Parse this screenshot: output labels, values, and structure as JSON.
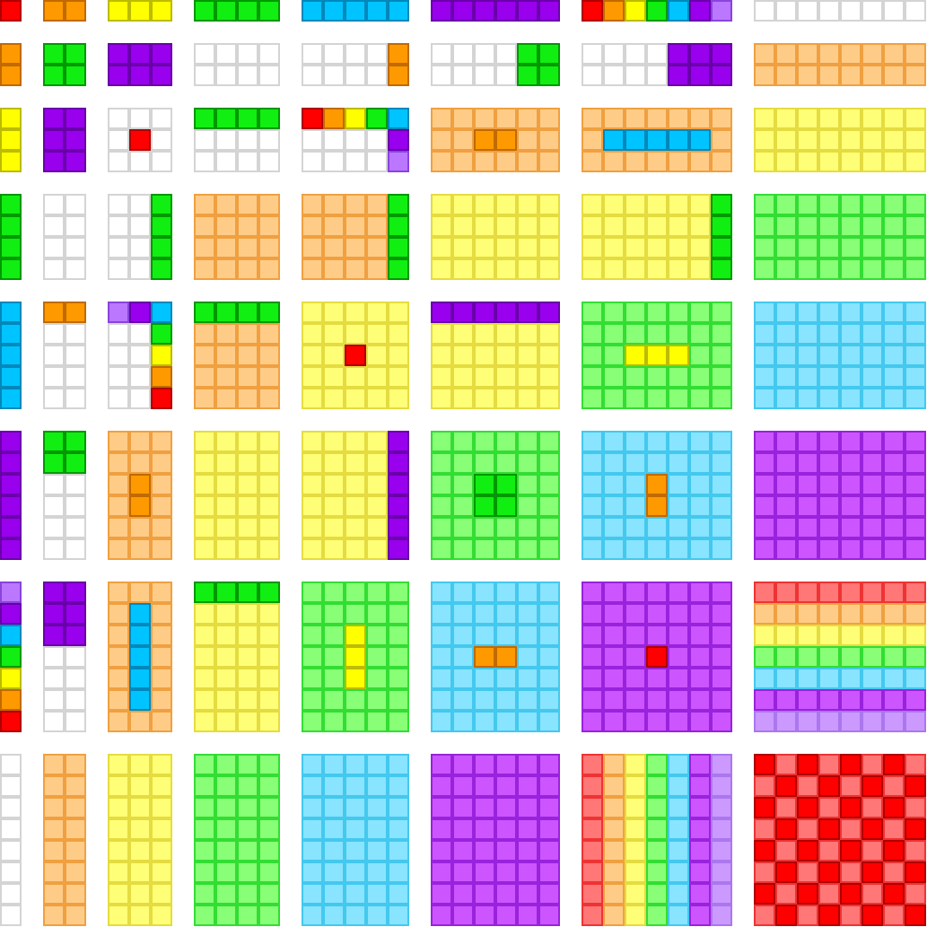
{
  "palette": {
    "W": [
      "#ffffff",
      "#d4d4d4"
    ],
    "R": [
      "#ff0000",
      "#b00000"
    ],
    "O": [
      "#ff9900",
      "#c06a00"
    ],
    "Y": [
      "#ffff00",
      "#bcbc00"
    ],
    "G": [
      "#11ee11",
      "#009900"
    ],
    "B": [
      "#00c4ff",
      "#0088bb"
    ],
    "P": [
      "#9900ee",
      "#6a00aa"
    ],
    "L": [
      "#bb77ff",
      "#8844dd"
    ],
    "r": [
      "#ff7777",
      "#ee3333"
    ],
    "o": [
      "#ffcc88",
      "#f0a040"
    ],
    "y": [
      "#ffff77",
      "#e4dc40"
    ],
    "g": [
      "#88ff77",
      "#33dd33"
    ],
    "b": [
      "#88e4ff",
      "#44c8ee"
    ],
    "p": [
      "#cc55ff",
      "#9922dd"
    ],
    "l": [
      "#cc99ff",
      "#aa77ee"
    ]
  },
  "blocks": [
    [
      {
        "bg": "R"
      },
      {
        "bg": "O"
      },
      {
        "bg": "Y"
      },
      {
        "bg": "G"
      },
      {
        "bg": "B"
      },
      {
        "bg": "P"
      },
      {
        "bg": "W",
        "marks": [
          [
            0,
            0,
            1,
            1,
            "R"
          ],
          [
            0,
            1,
            1,
            1,
            "O"
          ],
          [
            0,
            2,
            1,
            1,
            "Y"
          ],
          [
            0,
            3,
            1,
            1,
            "G"
          ],
          [
            0,
            4,
            1,
            1,
            "B"
          ],
          [
            0,
            5,
            1,
            1,
            "P"
          ],
          [
            0,
            6,
            1,
            1,
            "L"
          ]
        ]
      },
      {
        "bg": "W"
      }
    ],
    [
      {
        "bg": "O"
      },
      {
        "bg": "G"
      },
      {
        "bg": "P"
      },
      {
        "bg": "W"
      },
      {
        "bg": "W",
        "marks": [
          [
            0,
            4,
            2,
            1,
            "O"
          ]
        ]
      },
      {
        "bg": "W",
        "marks": [
          [
            0,
            4,
            2,
            2,
            "G"
          ]
        ]
      },
      {
        "bg": "W",
        "marks": [
          [
            0,
            4,
            2,
            3,
            "P"
          ]
        ]
      },
      {
        "bg": "o"
      }
    ],
    [
      {
        "bg": "Y"
      },
      {
        "bg": "P"
      },
      {
        "bg": "W",
        "marks": [
          [
            1,
            1,
            1,
            1,
            "R"
          ]
        ]
      },
      {
        "bg": "W",
        "marks": [
          [
            0,
            0,
            1,
            4,
            "G"
          ]
        ]
      },
      {
        "bg": "W",
        "marks": [
          [
            0,
            0,
            1,
            1,
            "R"
          ],
          [
            0,
            1,
            1,
            1,
            "O"
          ],
          [
            0,
            2,
            1,
            1,
            "Y"
          ],
          [
            0,
            3,
            1,
            1,
            "G"
          ],
          [
            0,
            4,
            1,
            1,
            "B"
          ],
          [
            1,
            4,
            1,
            1,
            "P"
          ],
          [
            2,
            4,
            1,
            1,
            "L"
          ]
        ]
      },
      {
        "bg": "o",
        "marks": [
          [
            1,
            2,
            1,
            2,
            "O"
          ]
        ]
      },
      {
        "bg": "o",
        "marks": [
          [
            1,
            1,
            1,
            5,
            "B"
          ]
        ]
      },
      {
        "bg": "y"
      }
    ],
    [
      {
        "bg": "G"
      },
      {
        "bg": "W"
      },
      {
        "bg": "W",
        "marks": [
          [
            0,
            2,
            4,
            1,
            "G"
          ]
        ]
      },
      {
        "bg": "o"
      },
      {
        "bg": "o",
        "marks": [
          [
            0,
            4,
            4,
            1,
            "G"
          ]
        ]
      },
      {
        "bg": "y"
      },
      {
        "bg": "y",
        "marks": [
          [
            0,
            6,
            4,
            1,
            "G"
          ]
        ]
      },
      {
        "bg": "g"
      }
    ],
    [
      {
        "bg": "B"
      },
      {
        "bg": "W",
        "marks": [
          [
            0,
            0,
            1,
            2,
            "O"
          ]
        ]
      },
      {
        "bg": "W",
        "marks": [
          [
            0,
            0,
            1,
            1,
            "L"
          ],
          [
            0,
            1,
            1,
            1,
            "P"
          ],
          [
            0,
            2,
            1,
            1,
            "B"
          ],
          [
            1,
            2,
            1,
            1,
            "G"
          ],
          [
            2,
            2,
            1,
            1,
            "Y"
          ],
          [
            3,
            2,
            1,
            1,
            "O"
          ],
          [
            4,
            2,
            1,
            1,
            "R"
          ]
        ]
      },
      {
        "bg": "o",
        "marks": [
          [
            0,
            0,
            1,
            4,
            "G"
          ]
        ]
      },
      {
        "bg": "y",
        "marks": [
          [
            2,
            2,
            1,
            1,
            "R"
          ]
        ]
      },
      {
        "bg": "y",
        "marks": [
          [
            0,
            0,
            1,
            6,
            "P"
          ]
        ]
      },
      {
        "bg": "g",
        "marks": [
          [
            2,
            2,
            1,
            3,
            "Y"
          ]
        ]
      },
      {
        "bg": "b"
      }
    ],
    [
      {
        "bg": "P"
      },
      {
        "bg": "W",
        "marks": [
          [
            0,
            0,
            2,
            2,
            "G"
          ]
        ]
      },
      {
        "bg": "o",
        "marks": [
          [
            2,
            1,
            2,
            1,
            "O"
          ]
        ]
      },
      {
        "bg": "y"
      },
      {
        "bg": "y",
        "marks": [
          [
            0,
            4,
            6,
            1,
            "P"
          ]
        ]
      },
      {
        "bg": "g",
        "marks": [
          [
            2,
            2,
            2,
            2,
            "G"
          ]
        ]
      },
      {
        "bg": "b",
        "marks": [
          [
            2,
            3,
            2,
            1,
            "O"
          ]
        ]
      },
      {
        "bg": "p"
      }
    ],
    [
      {
        "bg": "W",
        "marks": [
          [
            0,
            0,
            1,
            1,
            "L"
          ],
          [
            1,
            0,
            1,
            1,
            "P"
          ],
          [
            2,
            0,
            1,
            1,
            "B"
          ],
          [
            3,
            0,
            1,
            1,
            "G"
          ],
          [
            4,
            0,
            1,
            1,
            "Y"
          ],
          [
            5,
            0,
            1,
            1,
            "O"
          ],
          [
            6,
            0,
            1,
            1,
            "R"
          ]
        ]
      },
      {
        "bg": "W",
        "marks": [
          [
            0,
            0,
            3,
            2,
            "P"
          ]
        ]
      },
      {
        "bg": "o",
        "marks": [
          [
            1,
            1,
            5,
            1,
            "B"
          ]
        ]
      },
      {
        "bg": "y",
        "marks": [
          [
            0,
            0,
            1,
            4,
            "G"
          ]
        ]
      },
      {
        "bg": "g",
        "marks": [
          [
            2,
            2,
            3,
            1,
            "Y"
          ]
        ]
      },
      {
        "bg": "b",
        "marks": [
          [
            3,
            2,
            1,
            2,
            "O"
          ]
        ]
      },
      {
        "bg": "p",
        "marks": [
          [
            3,
            3,
            1,
            1,
            "R"
          ]
        ]
      },
      {
        "bg": "W",
        "marks": [
          [
            0,
            0,
            1,
            8,
            "r"
          ],
          [
            1,
            0,
            1,
            8,
            "o"
          ],
          [
            2,
            0,
            1,
            8,
            "y"
          ],
          [
            3,
            0,
            1,
            8,
            "g"
          ],
          [
            4,
            0,
            1,
            8,
            "b"
          ],
          [
            5,
            0,
            1,
            8,
            "p"
          ],
          [
            6,
            0,
            1,
            8,
            "l"
          ]
        ]
      }
    ],
    [
      {
        "bg": "W"
      },
      {
        "bg": "o"
      },
      {
        "bg": "y"
      },
      {
        "bg": "g"
      },
      {
        "bg": "b"
      },
      {
        "bg": "p"
      },
      {
        "bg": "W",
        "marks": [
          [
            0,
            0,
            8,
            1,
            "r"
          ],
          [
            0,
            1,
            8,
            1,
            "o"
          ],
          [
            0,
            2,
            8,
            1,
            "y"
          ],
          [
            0,
            3,
            8,
            1,
            "g"
          ],
          [
            0,
            4,
            8,
            1,
            "b"
          ],
          [
            0,
            5,
            8,
            1,
            "p"
          ],
          [
            0,
            6,
            8,
            1,
            "l"
          ]
        ]
      },
      {
        "bg": "r",
        "checker": "R"
      }
    ]
  ]
}
